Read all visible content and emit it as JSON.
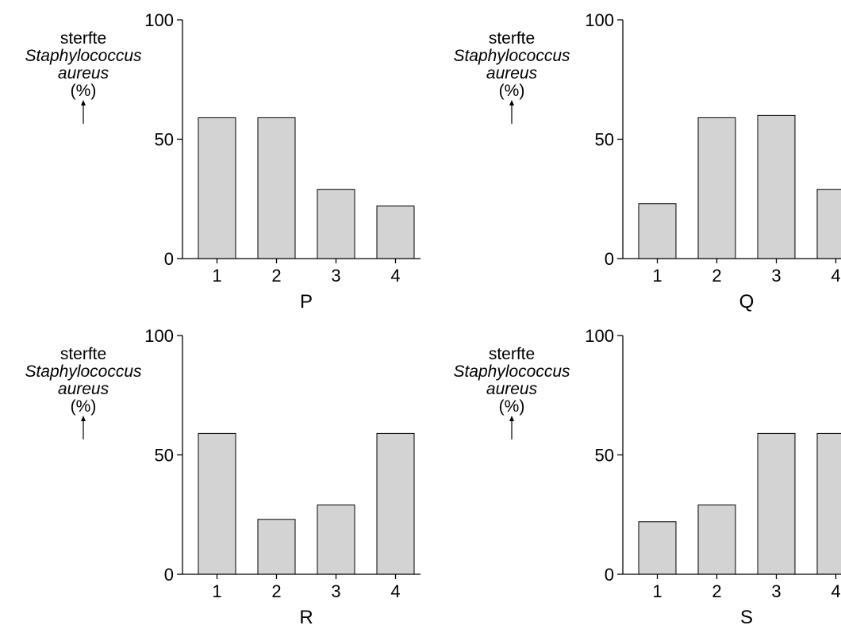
{
  "chart_data": [
    {
      "type": "bar",
      "panel_label": "P",
      "categories": [
        "1",
        "2",
        "3",
        "4"
      ],
      "values": [
        59,
        59,
        29,
        22
      ],
      "ylabel": [
        "sterfte",
        "Staphylococcus",
        "aureus",
        "(%)"
      ],
      "yticks": [
        "0",
        "50",
        "100"
      ],
      "ylim": [
        0,
        100
      ],
      "bar_color": "#d3d3d3"
    },
    {
      "type": "bar",
      "panel_label": "Q",
      "categories": [
        "1",
        "2",
        "3",
        "4"
      ],
      "values": [
        23,
        59,
        60,
        29
      ],
      "ylabel": [
        "sterfte",
        "Staphylococcus",
        "aureus",
        "(%)"
      ],
      "yticks": [
        "0",
        "50",
        "100"
      ],
      "ylim": [
        0,
        100
      ],
      "bar_color": "#d3d3d3"
    },
    {
      "type": "bar",
      "panel_label": "R",
      "categories": [
        "1",
        "2",
        "3",
        "4"
      ],
      "values": [
        59,
        23,
        29,
        59
      ],
      "ylabel": [
        "sterfte",
        "Staphylococcus",
        "aureus",
        "(%)"
      ],
      "yticks": [
        "0",
        "50",
        "100"
      ],
      "ylim": [
        0,
        100
      ],
      "bar_color": "#d3d3d3"
    },
    {
      "type": "bar",
      "panel_label": "S",
      "categories": [
        "1",
        "2",
        "3",
        "4"
      ],
      "values": [
        22,
        29,
        59,
        59
      ],
      "ylabel": [
        "sterfte",
        "Staphylococcus",
        "aureus",
        "(%)"
      ],
      "yticks": [
        "0",
        "50",
        "100"
      ],
      "ylim": [
        0,
        100
      ],
      "bar_color": "#d3d3d3"
    }
  ]
}
